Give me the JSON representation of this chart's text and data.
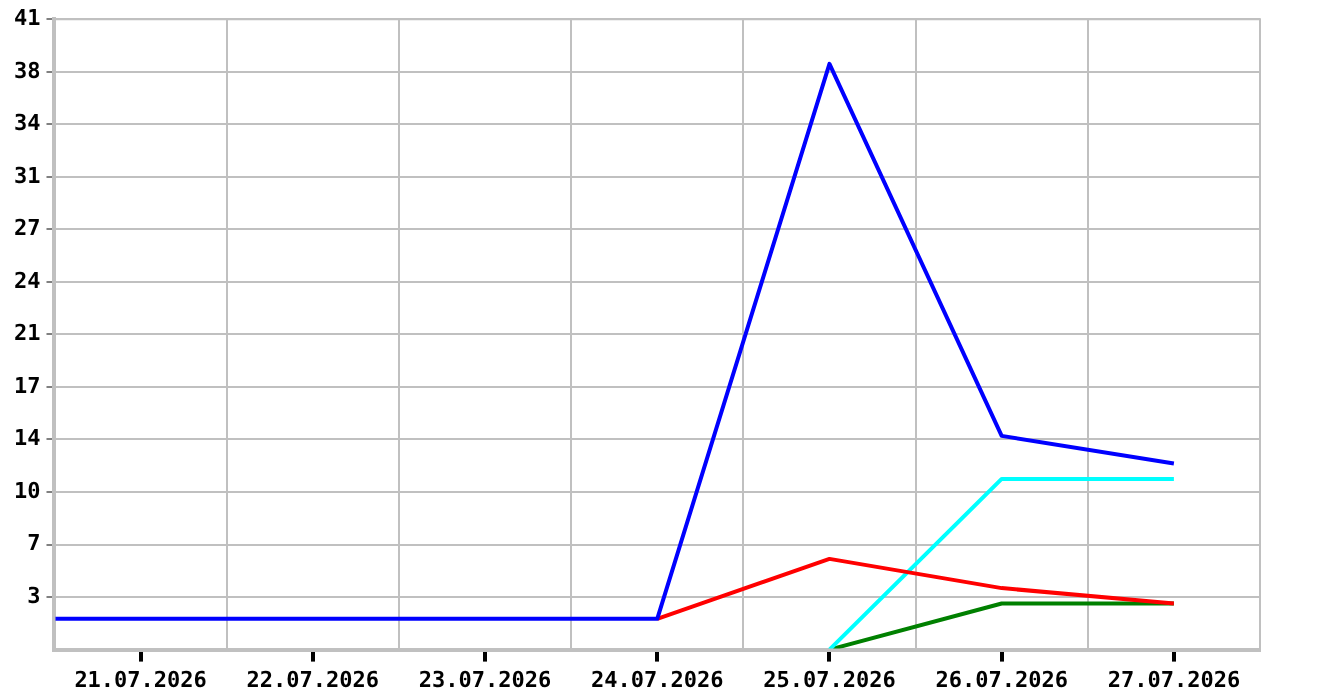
{
  "chart_data": {
    "type": "line",
    "xlim": [
      "2026-07-20T12:00",
      "2026-07-27T12:00"
    ],
    "xticks": [
      {
        "value": "2026-07-21",
        "label": "21.07.2026"
      },
      {
        "value": "2026-07-21T12:00",
        "label": null
      },
      {
        "value": "2026-07-22",
        "label": "22.07.2026"
      },
      {
        "value": "2026-07-22T12:00",
        "label": null
      },
      {
        "value": "2026-07-23",
        "label": "23.07.2026"
      },
      {
        "value": "2026-07-23T12:00",
        "label": null
      },
      {
        "value": "2026-07-24",
        "label": "24.07.2026"
      },
      {
        "value": "2026-07-24T12:00",
        "label": null
      },
      {
        "value": "2026-07-25",
        "label": "25.07.2026"
      },
      {
        "value": "2026-07-25T12:00",
        "label": null
      },
      {
        "value": "2026-07-26",
        "label": "26.07.2026"
      },
      {
        "value": "2026-07-26T12:00",
        "label": null
      },
      {
        "value": "2026-07-27",
        "label": "27.07.2026"
      }
    ],
    "ylim": [
      0,
      41
    ],
    "yticks": [
      {
        "value": 3.42,
        "label": "3"
      },
      {
        "value": 6.83,
        "label": "7"
      },
      {
        "value": 10.25,
        "label": "10"
      },
      {
        "value": 13.67,
        "label": "14"
      },
      {
        "value": 17.08,
        "label": "17"
      },
      {
        "value": 20.5,
        "label": "21"
      },
      {
        "value": 23.92,
        "label": "24"
      },
      {
        "value": 27.33,
        "label": "27"
      },
      {
        "value": 30.75,
        "label": "31"
      },
      {
        "value": 34.17,
        "label": "34"
      },
      {
        "value": 37.58,
        "label": "38"
      },
      {
        "value": 41,
        "label": "41"
      }
    ],
    "grid": true,
    "legend": false,
    "marker": "none",
    "line_style": "solid",
    "series": [
      {
        "color": "#0000ff",
        "x": [
          "2026-07-20T12:00",
          "2026-07-21",
          "2026-07-22",
          "2026-07-23",
          "2026-07-24",
          "2026-07-25",
          "2026-07-26",
          "2026-07-27"
        ],
        "values": [
          2,
          2,
          2,
          2,
          2,
          38.1,
          13.9,
          12.1
        ]
      },
      {
        "color": "#ff0000",
        "x": [
          "2026-07-24",
          "2026-07-25",
          "2026-07-26",
          "2026-07-27"
        ],
        "values": [
          2,
          5.9,
          4,
          3
        ]
      },
      {
        "color": "#00ffff",
        "x": [
          "2026-07-25",
          "2026-07-26",
          "2026-07-27"
        ],
        "values": [
          0,
          11.1,
          11.1
        ]
      },
      {
        "color": "#008000",
        "x": [
          "2026-07-25",
          "2026-07-26",
          "2026-07-27"
        ],
        "values": [
          0,
          3,
          3
        ]
      }
    ]
  }
}
